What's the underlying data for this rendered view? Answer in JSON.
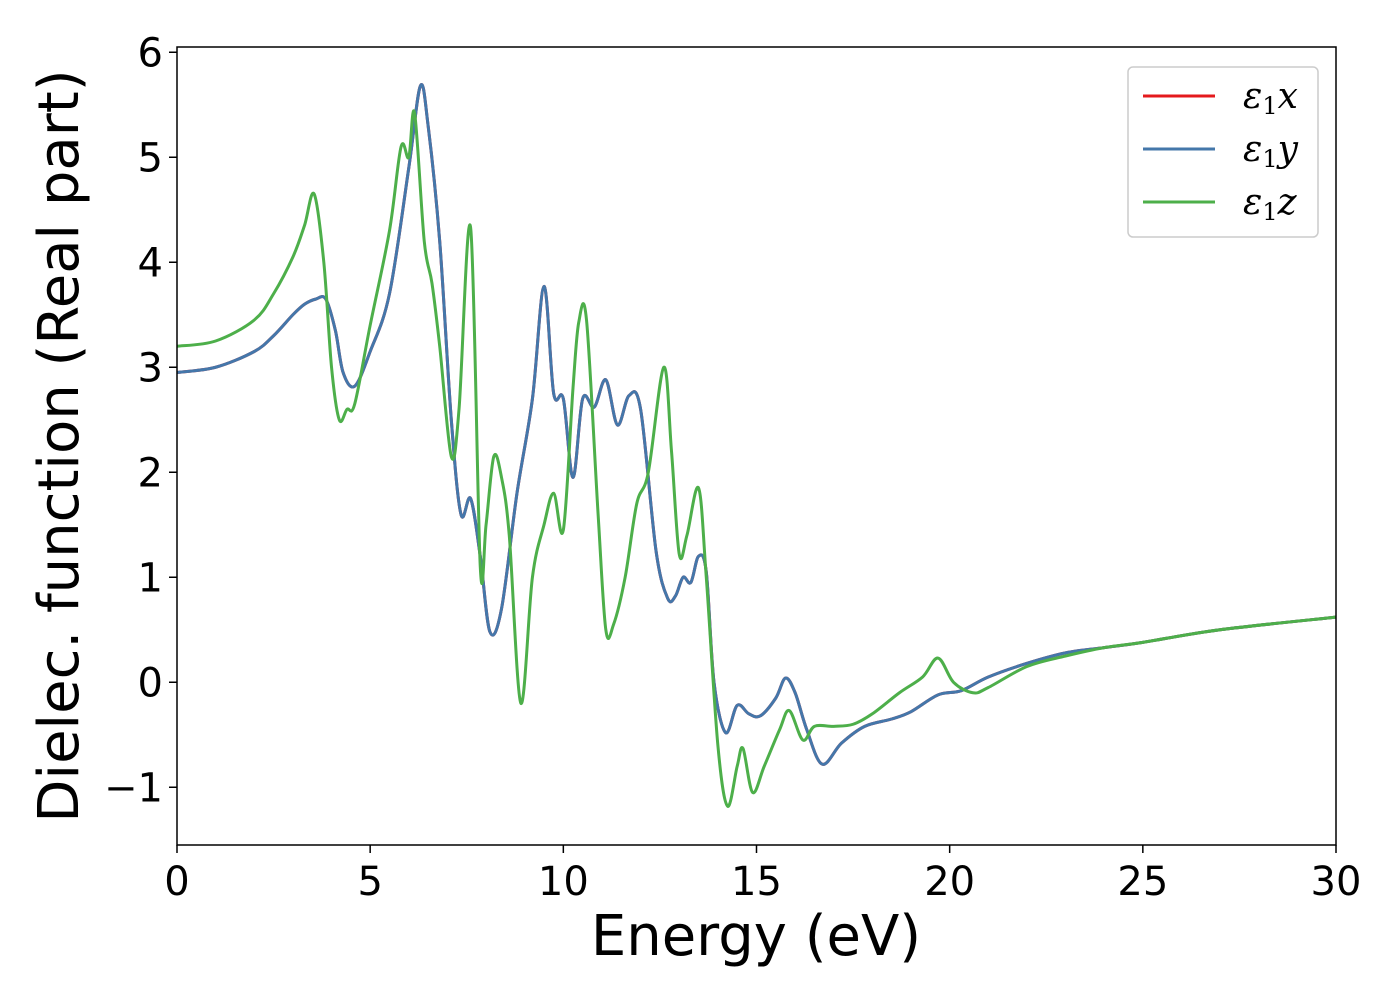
{
  "chart_data": {
    "type": "line",
    "title": "",
    "xlabel": "Energy (eV)",
    "ylabel": "Dielec. function (Real part)",
    "xlim": [
      0,
      30
    ],
    "ylim": [
      -1.55,
      6.05
    ],
    "xticks": [
      0,
      5,
      10,
      15,
      20,
      25,
      30
    ],
    "yticks": [
      -1,
      0,
      1,
      2,
      3,
      4,
      5,
      6
    ],
    "xtick_labels": [
      "0",
      "5",
      "10",
      "15",
      "20",
      "25",
      "30"
    ],
    "ytick_labels": [
      "−1",
      "0",
      "1",
      "2",
      "3",
      "4",
      "5",
      "6"
    ],
    "grid": false,
    "legend_position": "top-right",
    "series": [
      {
        "name": "ε1x",
        "legend_base": "ε",
        "legend_sub": "1",
        "legend_var": "x",
        "color": "#e41a1c",
        "x": [
          0,
          1,
          2,
          2.5,
          3,
          3.3,
          3.6,
          3.85,
          4.1,
          4.3,
          4.6,
          5,
          5.5,
          6,
          6.3,
          6.5,
          6.8,
          7.1,
          7.35,
          7.6,
          7.85,
          8.1,
          8.4,
          8.8,
          9.2,
          9.5,
          9.75,
          10,
          10.25,
          10.5,
          10.8,
          11.1,
          11.4,
          11.7,
          12,
          12.4,
          12.7,
          12.9,
          13.1,
          13.3,
          13.5,
          13.7,
          13.9,
          14.2,
          14.5,
          14.8,
          15.1,
          15.5,
          15.75,
          16,
          16.3,
          16.7,
          17.2,
          17.8,
          18.5,
          19,
          19.7,
          20.3,
          21,
          22,
          23,
          24,
          25,
          27,
          30
        ],
        "y": [
          2.95,
          3.0,
          3.15,
          3.3,
          3.5,
          3.6,
          3.65,
          3.65,
          3.35,
          2.95,
          2.82,
          3.15,
          3.7,
          4.9,
          5.68,
          5.3,
          4.2,
          2.5,
          1.6,
          1.75,
          1.2,
          0.48,
          0.7,
          1.8,
          2.7,
          3.77,
          2.75,
          2.7,
          1.95,
          2.7,
          2.62,
          2.88,
          2.45,
          2.73,
          2.6,
          1.25,
          0.8,
          0.82,
          1.0,
          0.95,
          1.2,
          1.05,
          0.0,
          -0.48,
          -0.22,
          -0.3,
          -0.32,
          -0.15,
          0.04,
          -0.1,
          -0.45,
          -0.78,
          -0.58,
          -0.42,
          -0.35,
          -0.28,
          -0.12,
          -0.08,
          0.05,
          0.18,
          0.28,
          0.33,
          0.38,
          0.5,
          0.62
        ]
      },
      {
        "name": "ε1y",
        "legend_base": "ε",
        "legend_sub": "1",
        "legend_var": "y",
        "color": "#4477aa",
        "x": [
          0,
          1,
          2,
          2.5,
          3,
          3.3,
          3.6,
          3.85,
          4.1,
          4.3,
          4.6,
          5,
          5.5,
          6,
          6.3,
          6.5,
          6.8,
          7.1,
          7.35,
          7.6,
          7.85,
          8.1,
          8.4,
          8.8,
          9.2,
          9.5,
          9.75,
          10,
          10.25,
          10.5,
          10.8,
          11.1,
          11.4,
          11.7,
          12,
          12.4,
          12.7,
          12.9,
          13.1,
          13.3,
          13.5,
          13.7,
          13.9,
          14.2,
          14.5,
          14.8,
          15.1,
          15.5,
          15.75,
          16,
          16.3,
          16.7,
          17.2,
          17.8,
          18.5,
          19,
          19.7,
          20.3,
          21,
          22,
          23,
          24,
          25,
          27,
          30
        ],
        "y": [
          2.95,
          3.0,
          3.15,
          3.3,
          3.5,
          3.6,
          3.65,
          3.65,
          3.35,
          2.95,
          2.82,
          3.15,
          3.7,
          4.9,
          5.68,
          5.3,
          4.2,
          2.5,
          1.6,
          1.75,
          1.2,
          0.48,
          0.7,
          1.8,
          2.7,
          3.77,
          2.75,
          2.7,
          1.95,
          2.7,
          2.62,
          2.88,
          2.45,
          2.73,
          2.6,
          1.25,
          0.8,
          0.82,
          1.0,
          0.95,
          1.2,
          1.05,
          0.0,
          -0.48,
          -0.22,
          -0.3,
          -0.32,
          -0.15,
          0.04,
          -0.1,
          -0.45,
          -0.78,
          -0.58,
          -0.42,
          -0.35,
          -0.28,
          -0.12,
          -0.08,
          0.05,
          0.18,
          0.28,
          0.33,
          0.38,
          0.5,
          0.62
        ]
      },
      {
        "name": "ε1z",
        "legend_base": "ε",
        "legend_sub": "1",
        "legend_var": "z",
        "color": "#4daf4a",
        "x": [
          0,
          1,
          2,
          2.5,
          3,
          3.3,
          3.55,
          3.8,
          4.0,
          4.2,
          4.4,
          4.6,
          5,
          5.5,
          5.8,
          6.0,
          6.15,
          6.4,
          6.6,
          6.8,
          7.1,
          7.3,
          7.6,
          7.85,
          8.0,
          8.2,
          8.4,
          8.6,
          8.9,
          9.2,
          9.5,
          9.75,
          10,
          10.25,
          10.4,
          10.6,
          10.9,
          11.1,
          11.3,
          11.6,
          11.9,
          12.2,
          12.6,
          12.8,
          13.0,
          13.2,
          13.5,
          13.7,
          14.0,
          14.25,
          14.5,
          14.65,
          14.9,
          15.2,
          15.6,
          15.85,
          16.2,
          16.5,
          17,
          17.5,
          18,
          18.7,
          19.3,
          19.7,
          20.1,
          20.6,
          21,
          22,
          23,
          24,
          25,
          27,
          30
        ],
        "y": [
          3.2,
          3.25,
          3.45,
          3.7,
          4.05,
          4.35,
          4.65,
          4.0,
          3.0,
          2.5,
          2.6,
          2.65,
          3.4,
          4.3,
          5.1,
          5.0,
          5.42,
          4.2,
          3.8,
          3.2,
          2.15,
          2.6,
          4.33,
          1.1,
          1.5,
          2.15,
          1.95,
          1.4,
          -0.2,
          1.0,
          1.5,
          1.8,
          1.45,
          2.8,
          3.43,
          3.45,
          1.6,
          0.5,
          0.55,
          1.0,
          1.7,
          2.0,
          3.0,
          2.2,
          1.22,
          1.4,
          1.85,
          1.0,
          -0.6,
          -1.18,
          -0.8,
          -0.63,
          -1.05,
          -0.8,
          -0.45,
          -0.27,
          -0.55,
          -0.42,
          -0.42,
          -0.4,
          -0.3,
          -0.1,
          0.05,
          0.23,
          0.0,
          -0.1,
          -0.05,
          0.15,
          0.25,
          0.33,
          0.38,
          0.5,
          0.62
        ]
      }
    ]
  }
}
